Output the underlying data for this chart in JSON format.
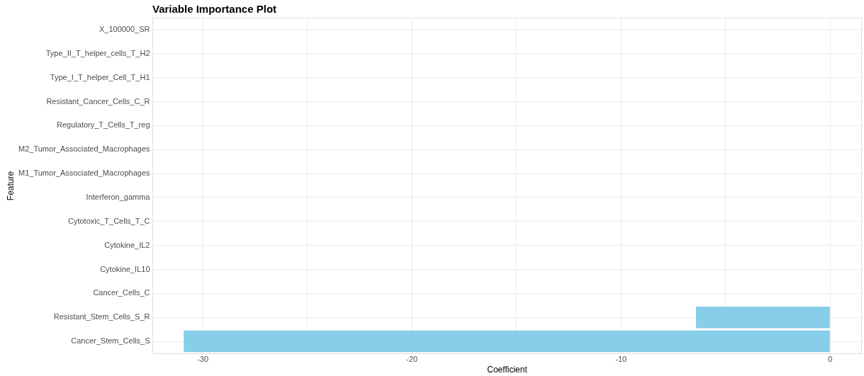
{
  "chart_data": {
    "type": "bar",
    "orientation": "horizontal",
    "title": "Variable Importance Plot",
    "xlabel": "Coefficient",
    "ylabel": "Feature",
    "categories": [
      "X_100000_SR",
      "Type_II_T_helper_cells_T_H2",
      "Type_I_T_helper_Cell_T_H1",
      "Resistant_Cancer_Cells_C_R",
      "Regulatory_T_Cells_T_reg",
      "M2_Tumor_Associated_Macrophages",
      "M1_Tumor_Associated_Macrophages",
      "Interferon_gamma",
      "Cytotoxic_T_Cells_T_C",
      "Cytokine_IL2",
      "Cytokine_IL10",
      "Cancer_Cells_C",
      "Resistant_Stem_Cells_S_R",
      "Cancer_Stem_Cells_S"
    ],
    "values": [
      0,
      0,
      0,
      0,
      0,
      0,
      0,
      0,
      0,
      0,
      0,
      0,
      -6.4,
      -30.9
    ],
    "color": "#87ceeb",
    "xlim": [
      -32.4,
      1.5
    ],
    "xticks": [
      -30,
      {
        "value": -25,
        "label": null
      },
      -20,
      {
        "value": -15,
        "label": null
      },
      -10,
      {
        "value": -5,
        "label": null
      },
      0
    ],
    "grid": true
  }
}
